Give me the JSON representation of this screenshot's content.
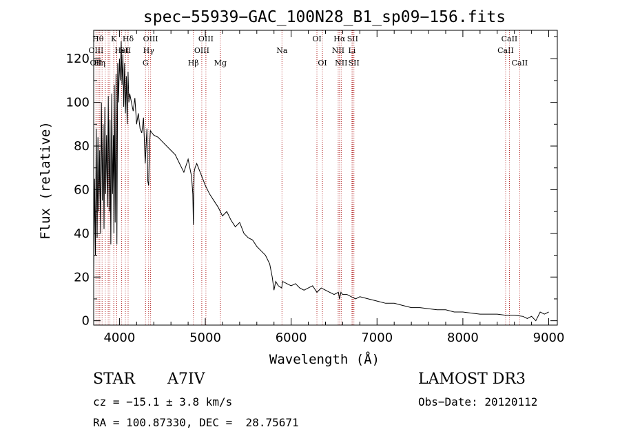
{
  "chart_data": {
    "type": "line",
    "title": "spec−55939−GAC_100N28_B1_sp09−156.fits",
    "xlabel": "Wavelength (Å)",
    "ylabel": "Flux (relative)",
    "xlim": [
      3700,
      9100
    ],
    "ylim": [
      -2,
      133
    ],
    "xticks": [
      4000,
      5000,
      6000,
      7000,
      8000,
      9000
    ],
    "yticks": [
      0,
      20,
      40,
      60,
      80,
      100,
      120
    ],
    "series": [
      {
        "name": "spectrum",
        "x": [
          3700,
          3710,
          3720,
          3730,
          3740,
          3750,
          3760,
          3770,
          3780,
          3790,
          3800,
          3810,
          3820,
          3830,
          3840,
          3850,
          3860,
          3870,
          3880,
          3890,
          3900,
          3910,
          3920,
          3930,
          3935,
          3940,
          3950,
          3960,
          3970,
          3980,
          3990,
          4000,
          4010,
          4020,
          4030,
          4040,
          4050,
          4060,
          4070,
          4080,
          4090,
          4100,
          4110,
          4120,
          4140,
          4160,
          4180,
          4200,
          4220,
          4240,
          4260,
          4280,
          4300,
          4320,
          4330,
          4340,
          4350,
          4360,
          4380,
          4400,
          4450,
          4500,
          4550,
          4600,
          4650,
          4700,
          4750,
          4800,
          4840,
          4855,
          4861,
          4870,
          4880,
          4900,
          4950,
          5000,
          5050,
          5100,
          5150,
          5200,
          5250,
          5300,
          5350,
          5400,
          5450,
          5500,
          5550,
          5600,
          5650,
          5700,
          5750,
          5780,
          5800,
          5820,
          5850,
          5890,
          5900,
          5950,
          6000,
          6050,
          6100,
          6150,
          6200,
          6250,
          6300,
          6350,
          6400,
          6450,
          6500,
          6550,
          6563,
          6580,
          6600,
          6650,
          6700,
          6750,
          6800,
          6900,
          7000,
          7100,
          7200,
          7300,
          7400,
          7500,
          7600,
          7700,
          7800,
          7900,
          8000,
          8100,
          8200,
          8300,
          8400,
          8500,
          8600,
          8700,
          8750,
          8800,
          8850,
          8900,
          8950,
          9000
        ],
        "values": [
          20,
          65,
          30,
          88,
          38,
          84,
          50,
          78,
          40,
          100,
          55,
          90,
          42,
          98,
          58,
          85,
          52,
          103,
          50,
          92,
          35,
          104,
          58,
          85,
          40,
          108,
          45,
          113,
          35,
          118,
          100,
          120,
          110,
          128,
          108,
          122,
          98,
          118,
          95,
          112,
          90,
          114,
          100,
          104,
          100,
          96,
          102,
          90,
          95,
          88,
          86,
          93,
          72,
          88,
          64,
          62,
          80,
          87,
          86,
          85,
          84,
          82,
          80,
          78,
          76,
          72,
          68,
          74,
          66,
          58,
          44,
          68,
          70,
          72,
          67,
          62,
          58,
          55,
          52,
          48,
          50,
          46,
          43,
          45,
          40,
          38,
          37,
          34,
          32,
          30,
          26,
          20,
          14,
          18,
          16,
          15,
          18,
          17,
          16,
          17,
          15,
          14,
          15,
          16,
          13,
          15,
          14,
          13,
          12,
          13,
          10,
          13,
          12,
          12,
          11,
          10,
          11,
          10,
          9,
          8,
          8,
          7,
          6,
          6,
          5.5,
          5,
          5,
          4,
          4,
          3.5,
          3,
          3,
          3,
          2.5,
          2.5,
          2,
          1,
          2,
          0,
          4,
          3,
          4
        ]
      }
    ],
    "lines": [
      {
        "wave": 3727,
        "labels": [
          {
            "text": "OII",
            "row": 2
          },
          {
            "text": "OIII",
            "row": 1
          }
        ]
      },
      {
        "wave": 3750,
        "labels": [
          {
            "text": "Hθ",
            "row": 0
          }
        ]
      },
      {
        "wave": 3771,
        "labels": [
          {
            "text": "Hη",
            "row": 2
          }
        ]
      },
      {
        "wave": 3798,
        "labels": []
      },
      {
        "wave": 3835,
        "labels": []
      },
      {
        "wave": 3869,
        "labels": []
      },
      {
        "wave": 3889,
        "labels": []
      },
      {
        "wave": 3934,
        "labels": [
          {
            "text": "K",
            "row": 0
          }
        ]
      },
      {
        "wave": 3969,
        "labels": []
      },
      {
        "wave": 4026,
        "labels": [
          {
            "text": "HeI",
            "row": 1
          }
        ]
      },
      {
        "wave": 4069,
        "labels": [
          {
            "text": "SII",
            "row": 1
          }
        ]
      },
      {
        "wave": 4101,
        "labels": [
          {
            "text": "Hδ",
            "row": 0
          }
        ]
      },
      {
        "wave": 4340,
        "labels": [
          {
            "text": "Hγ",
            "row": 1
          }
        ]
      },
      {
        "wave": 4304,
        "labels": [
          {
            "text": "G",
            "row": 2
          }
        ]
      },
      {
        "wave": 4363,
        "labels": [
          {
            "text": "OIII",
            "row": 0
          }
        ]
      },
      {
        "wave": 4861,
        "labels": [
          {
            "text": "Hβ",
            "row": 2
          }
        ]
      },
      {
        "wave": 4959,
        "labels": [
          {
            "text": "OIII",
            "row": 1
          }
        ]
      },
      {
        "wave": 5007,
        "labels": [
          {
            "text": "OIII",
            "row": 0
          }
        ]
      },
      {
        "wave": 5176,
        "labels": [
          {
            "text": "Mg",
            "row": 2
          }
        ]
      },
      {
        "wave": 5893,
        "labels": [
          {
            "text": "Na",
            "row": 1
          }
        ]
      },
      {
        "wave": 6300,
        "labels": [
          {
            "text": "OI",
            "row": 0
          }
        ]
      },
      {
        "wave": 6364,
        "labels": [
          {
            "text": "OI",
            "row": 2
          }
        ]
      },
      {
        "wave": 6548,
        "labels": [
          {
            "text": "NII",
            "row": 1
          }
        ]
      },
      {
        "wave": 6563,
        "labels": [
          {
            "text": "Hα",
            "row": 0
          }
        ]
      },
      {
        "wave": 6583,
        "labels": [
          {
            "text": "NII",
            "row": 2
          }
        ]
      },
      {
        "wave": 6708,
        "labels": [
          {
            "text": "Li",
            "row": 1
          }
        ]
      },
      {
        "wave": 6716,
        "labels": [
          {
            "text": "SII",
            "row": 0
          }
        ]
      },
      {
        "wave": 6731,
        "labels": [
          {
            "text": "SII",
            "row": 2
          }
        ]
      },
      {
        "wave": 8498,
        "labels": [
          {
            "text": "CaII",
            "row": 1
          }
        ]
      },
      {
        "wave": 8542,
        "labels": [
          {
            "text": "CaII",
            "row": 0
          }
        ]
      },
      {
        "wave": 8662,
        "labels": [
          {
            "text": "CaII",
            "row": 2
          }
        ]
      }
    ]
  },
  "info": {
    "object_type": "STAR",
    "subclass": "A7IV",
    "survey": "LAMOST DR3",
    "redshift": "cz = −15.1 ± 3.8 km/s",
    "obs_date": "Obs−Date: 20120112",
    "coords": "RA = 100.87330, DEC =  28.75671"
  }
}
